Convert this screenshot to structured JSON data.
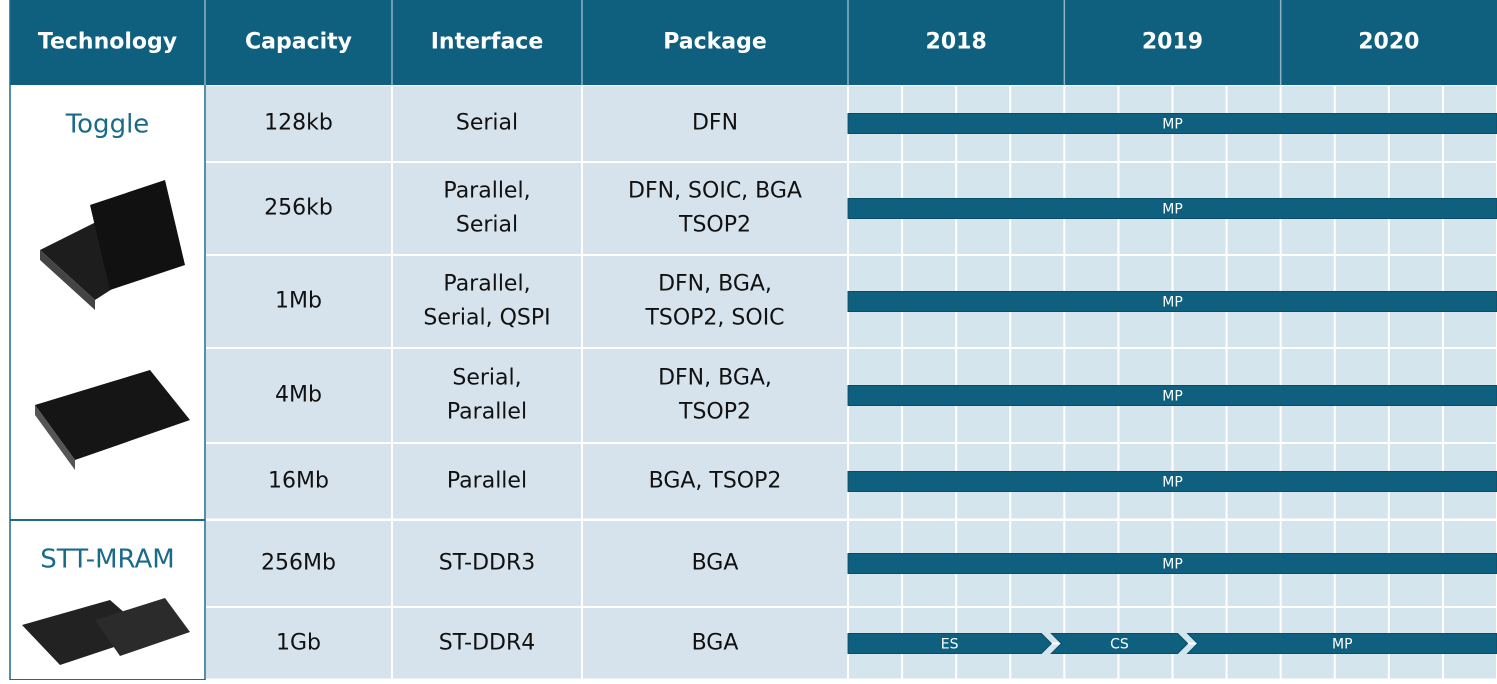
{
  "header": {
    "columns": [
      "Technology",
      "Capacity",
      "Interface",
      "Package",
      "2018",
      "2019",
      "2020"
    ]
  },
  "timeline": {
    "xlim": [
      2018,
      2021
    ]
  },
  "groups": [
    {
      "name": "Toggle",
      "rows": [
        {
          "capacity": "128kb",
          "interface": [
            "Serial"
          ],
          "package": [
            "DFN"
          ],
          "phases": [
            {
              "label": "MP",
              "start": 2018,
              "end": 2021
            }
          ]
        },
        {
          "capacity": "256kb",
          "interface": [
            "Parallel,",
            "Serial"
          ],
          "package": [
            "DFN, SOIC, BGA",
            "TSOP2"
          ],
          "phases": [
            {
              "label": "MP",
              "start": 2018,
              "end": 2021
            }
          ]
        },
        {
          "capacity": "1Mb",
          "interface": [
            "Parallel,",
            "Serial, QSPI"
          ],
          "package": [
            "DFN, BGA,",
            "TSOP2, SOIC"
          ],
          "phases": [
            {
              "label": "MP",
              "start": 2018,
              "end": 2021
            }
          ]
        },
        {
          "capacity": "4Mb",
          "interface": [
            "Serial,",
            "Parallel"
          ],
          "package": [
            "DFN, BGA,",
            "TSOP2"
          ],
          "phases": [
            {
              "label": "MP",
              "start": 2018,
              "end": 2021
            }
          ]
        },
        {
          "capacity": "16Mb",
          "interface": [
            "Parallel"
          ],
          "package": [
            "BGA, TSOP2"
          ],
          "phases": [
            {
              "label": "MP",
              "start": 2018,
              "end": 2021
            }
          ]
        }
      ]
    },
    {
      "name": "STT-MRAM",
      "rows": [
        {
          "capacity": "256Mb",
          "interface": [
            "ST-DDR3"
          ],
          "package": [
            "BGA"
          ],
          "phases": [
            {
              "label": "MP",
              "start": 2018,
              "end": 2021
            }
          ]
        },
        {
          "capacity": "1Gb",
          "interface": [
            "ST-DDR4"
          ],
          "package": [
            "BGA"
          ],
          "phases": [
            {
              "label": "ES",
              "start": 2018,
              "end": 2018.94
            },
            {
              "label": "CS",
              "start": 2018.94,
              "end": 2019.57
            },
            {
              "label": "MP",
              "start": 2019.57,
              "end": 2021
            }
          ]
        }
      ]
    }
  ]
}
